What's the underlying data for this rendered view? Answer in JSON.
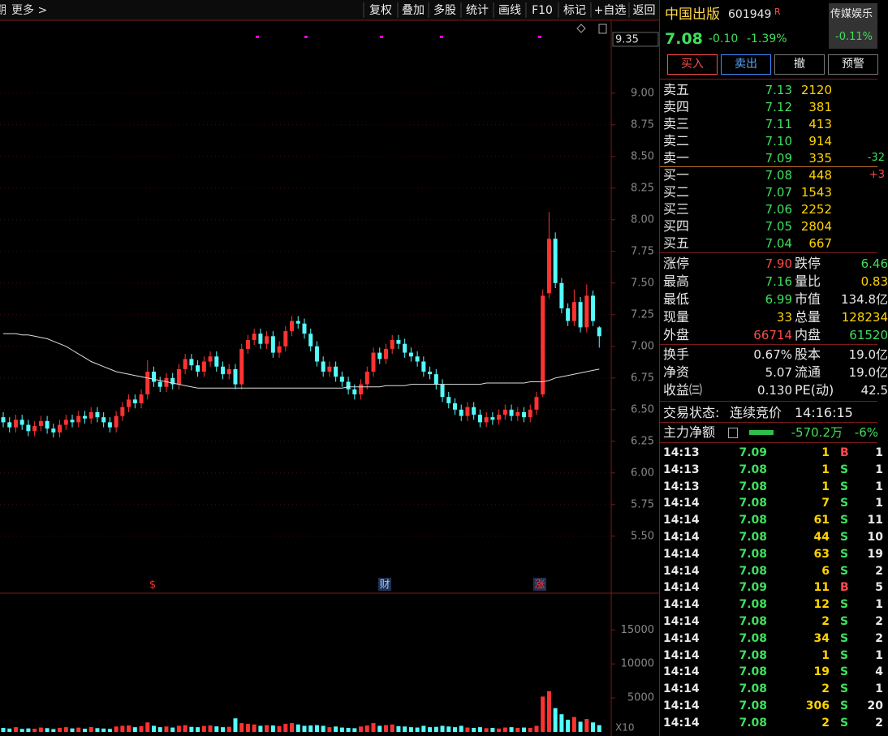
{
  "toolbar": {
    "left_cut": "期",
    "more": "更多 >",
    "buttons": [
      "复权",
      "叠加",
      "多股",
      "统计",
      "画线",
      "F10",
      "标记",
      "+自选",
      "返回"
    ]
  },
  "chart_data": [
    {
      "type": "candlestick",
      "up_color": "#ff3232",
      "down_color": "#54fcfc",
      "grid": true,
      "ylim": [
        5.05,
        9.55
      ],
      "yticks": [
        {
          "value": 5.5,
          "label": "5.50"
        },
        {
          "value": 5.75,
          "label": "5.75"
        },
        {
          "value": 6,
          "label": "6.00"
        },
        {
          "value": 6.25,
          "label": "6.25"
        },
        {
          "value": 6.5,
          "label": "6.50"
        },
        {
          "value": 6.75,
          "label": "6.75"
        },
        {
          "value": 7,
          "label": "7.00"
        },
        {
          "value": 7.25,
          "label": "7.25"
        },
        {
          "value": 7.5,
          "label": "7.50"
        },
        {
          "value": 7.75,
          "label": "7.75"
        },
        {
          "value": 8,
          "label": "8.00"
        },
        {
          "value": 8.25,
          "label": "8.25"
        },
        {
          "value": 8.5,
          "label": "8.50"
        },
        {
          "value": 8.75,
          "label": "8.75"
        },
        {
          "value": 9,
          "label": "9.00"
        }
      ],
      "cursor_price": 9.35,
      "events": [
        "$",
        "财",
        "涨"
      ],
      "open": [
        6.44,
        6.4,
        6.36,
        6.42,
        6.38,
        6.33,
        6.37,
        6.41,
        6.35,
        6.32,
        6.38,
        6.42,
        6.4,
        6.45,
        6.43,
        6.48,
        6.44,
        6.4,
        6.36,
        6.45,
        6.52,
        6.58,
        6.55,
        6.62,
        6.8,
        6.72,
        6.68,
        6.75,
        6.7,
        6.82,
        6.9,
        6.85,
        6.8,
        6.88,
        6.92,
        6.84,
        6.78,
        6.82,
        6.7,
        6.98,
        7.05,
        7.1,
        7.02,
        7.08,
        6.95,
        7.0,
        7.12,
        7.2,
        7.18,
        7.1,
        7.0,
        6.88,
        6.8,
        6.84,
        6.76,
        6.72,
        6.66,
        6.62,
        6.7,
        6.8,
        6.95,
        6.9,
        6.98,
        7.05,
        7.02,
        6.95,
        6.92,
        6.88,
        6.8,
        6.78,
        6.7,
        6.6,
        6.55,
        6.5,
        6.45,
        6.52,
        6.46,
        6.4,
        6.44,
        6.42,
        6.46,
        6.5,
        6.45,
        6.48,
        6.44,
        6.5,
        6.62,
        7.42,
        7.85,
        7.5,
        7.3,
        7.2,
        7.35,
        7.15,
        7.4,
        7.15
      ],
      "high": [
        6.48,
        6.44,
        6.46,
        6.46,
        6.42,
        6.41,
        6.45,
        6.45,
        6.39,
        6.42,
        6.46,
        6.46,
        6.49,
        6.49,
        6.52,
        6.52,
        6.48,
        6.44,
        6.49,
        6.56,
        6.62,
        6.62,
        6.66,
        6.89,
        6.84,
        6.76,
        6.79,
        6.79,
        6.86,
        6.94,
        6.94,
        6.89,
        6.92,
        6.96,
        6.96,
        6.88,
        6.86,
        6.86,
        7.02,
        7.09,
        7.14,
        7.14,
        7.12,
        7.12,
        7.04,
        7.16,
        7.24,
        7.24,
        7.22,
        7.14,
        7.04,
        6.92,
        6.88,
        6.88,
        6.8,
        6.76,
        6.7,
        6.74,
        6.84,
        6.99,
        6.99,
        7.02,
        7.09,
        7.09,
        7.06,
        6.99,
        6.96,
        6.92,
        6.84,
        6.82,
        6.74,
        6.64,
        6.59,
        6.54,
        6.56,
        6.56,
        6.5,
        6.48,
        6.48,
        6.5,
        6.54,
        6.54,
        6.52,
        6.52,
        6.54,
        6.64,
        7.45,
        8.06,
        7.9,
        7.54,
        7.34,
        7.45,
        7.39,
        7.49,
        7.44,
        7.16
      ],
      "low": [
        6.36,
        6.32,
        6.32,
        6.34,
        6.29,
        6.29,
        6.33,
        6.31,
        6.28,
        6.28,
        6.34,
        6.36,
        6.36,
        6.39,
        6.39,
        6.4,
        6.36,
        6.32,
        6.32,
        6.41,
        6.48,
        6.51,
        6.51,
        6.58,
        6.68,
        6.64,
        6.64,
        6.66,
        6.66,
        6.78,
        6.81,
        6.76,
        6.76,
        6.84,
        6.8,
        6.74,
        6.74,
        6.66,
        6.66,
        6.94,
        7.01,
        6.98,
        6.98,
        6.91,
        6.91,
        6.96,
        7.08,
        7.14,
        7.06,
        6.96,
        6.84,
        6.76,
        6.76,
        6.72,
        6.68,
        6.62,
        6.58,
        6.58,
        6.66,
        6.76,
        6.86,
        6.86,
        6.94,
        6.98,
        6.91,
        6.88,
        6.84,
        6.76,
        6.74,
        6.66,
        6.56,
        6.51,
        6.46,
        6.41,
        6.41,
        6.42,
        6.36,
        6.36,
        6.38,
        6.38,
        6.42,
        6.41,
        6.41,
        6.4,
        6.4,
        6.46,
        6.6,
        7.38,
        7.46,
        7.26,
        7.16,
        7.16,
        7.11,
        7.11,
        7.16,
        6.99
      ],
      "close": [
        6.4,
        6.36,
        6.42,
        6.38,
        6.33,
        6.37,
        6.41,
        6.35,
        6.32,
        6.38,
        6.42,
        6.4,
        6.45,
        6.43,
        6.48,
        6.44,
        6.4,
        6.36,
        6.45,
        6.52,
        6.58,
        6.55,
        6.62,
        6.8,
        6.72,
        6.68,
        6.75,
        6.7,
        6.82,
        6.9,
        6.85,
        6.8,
        6.88,
        6.92,
        6.84,
        6.78,
        6.82,
        6.7,
        6.98,
        7.05,
        7.1,
        7.02,
        7.08,
        6.95,
        7.0,
        7.12,
        7.2,
        7.18,
        7.1,
        7.0,
        6.88,
        6.8,
        6.84,
        6.76,
        6.72,
        6.66,
        6.62,
        6.7,
        6.8,
        6.95,
        6.9,
        6.98,
        7.05,
        7.02,
        6.95,
        6.92,
        6.88,
        6.8,
        6.78,
        6.7,
        6.6,
        6.55,
        6.5,
        6.45,
        6.52,
        6.46,
        6.4,
        6.44,
        6.42,
        6.46,
        6.5,
        6.45,
        6.48,
        6.44,
        6.5,
        6.6,
        7.4,
        7.85,
        7.5,
        7.3,
        7.2,
        7.35,
        7.15,
        7.4,
        7.2,
        7.08
      ],
      "ma": {
        "color": "#dddddd",
        "values": [
          7.1,
          7.1,
          7.1,
          7.09,
          7.09,
          7.08,
          7.07,
          7.06,
          7.04,
          7.02,
          7.0,
          6.97,
          6.94,
          6.91,
          6.88,
          6.86,
          6.84,
          6.82,
          6.8,
          6.79,
          6.78,
          6.77,
          6.76,
          6.75,
          6.74,
          6.73,
          6.72,
          6.71,
          6.7,
          6.69,
          6.68,
          6.67,
          6.67,
          6.67,
          6.67,
          6.67,
          6.67,
          6.67,
          6.67,
          6.67,
          6.67,
          6.67,
          6.67,
          6.67,
          6.67,
          6.67,
          6.67,
          6.67,
          6.67,
          6.67,
          6.67,
          6.67,
          6.67,
          6.67,
          6.67,
          6.68,
          6.68,
          6.68,
          6.68,
          6.68,
          6.68,
          6.69,
          6.69,
          6.69,
          6.69,
          6.7,
          6.7,
          6.7,
          6.7,
          6.7,
          6.7,
          6.7,
          6.7,
          6.7,
          6.7,
          6.7,
          6.7,
          6.71,
          6.71,
          6.71,
          6.71,
          6.71,
          6.71,
          6.71,
          6.72,
          6.72,
          6.72,
          6.73,
          6.75,
          6.76,
          6.77,
          6.78,
          6.79,
          6.8,
          6.81,
          6.82
        ]
      }
    },
    {
      "type": "bar",
      "unit_label": "X10",
      "ylim": [
        0,
        20400
      ],
      "yticks": [
        5000,
        10000,
        15000
      ],
      "values": [
        600,
        500,
        700,
        450,
        520,
        480,
        650,
        560,
        430,
        610,
        700,
        520,
        640,
        480,
        720,
        560,
        500,
        450,
        800,
        900,
        950,
        700,
        850,
        1400,
        900,
        700,
        800,
        650,
        900,
        1000,
        750,
        700,
        880,
        950,
        820,
        700,
        760,
        2000,
        1300,
        1200,
        1100,
        900,
        1000,
        950,
        850,
        1200,
        1300,
        1100,
        900,
        950,
        1000,
        900,
        700,
        800,
        650,
        600,
        550,
        800,
        950,
        1300,
        900,
        1000,
        1100,
        850,
        800,
        700,
        650,
        900,
        700,
        750,
        900,
        800,
        700,
        900,
        650,
        600,
        700,
        550,
        600,
        500,
        650,
        700,
        600,
        650,
        600,
        900,
        5200,
        6000,
        3500,
        2600,
        1800,
        2200,
        1500,
        1900,
        1400,
        1000
      ]
    }
  ],
  "quote": {
    "name": "中国出版",
    "code": "601949",
    "badge": "R",
    "sector": {
      "name": "传媒娱乐",
      "change": "-0.11%"
    },
    "price": "7.08",
    "change": "-0.10",
    "change_pct": "-1.39%",
    "buttons": [
      "买入",
      "卖出",
      "撤",
      "预警"
    ],
    "asks": [
      {
        "label": "卖五",
        "price": "7.13",
        "volume": "2120"
      },
      {
        "label": "卖四",
        "price": "7.12",
        "volume": "381"
      },
      {
        "label": "卖三",
        "price": "7.11",
        "volume": "413"
      },
      {
        "label": "卖二",
        "price": "7.10",
        "volume": "914"
      },
      {
        "label": "卖一",
        "price": "7.09",
        "volume": "335",
        "delta": "-32"
      }
    ],
    "bids": [
      {
        "label": "买一",
        "price": "7.08",
        "volume": "448",
        "delta": "+3"
      },
      {
        "label": "买二",
        "price": "7.07",
        "volume": "1543"
      },
      {
        "label": "买三",
        "price": "7.06",
        "volume": "2252"
      },
      {
        "label": "买四",
        "price": "7.05",
        "volume": "2804"
      },
      {
        "label": "买五",
        "price": "7.04",
        "volume": "667"
      }
    ],
    "stats": [
      [
        "涨停",
        "7.90",
        "跌停",
        "6.46"
      ],
      [
        "最高",
        "7.16",
        "量比",
        "0.83"
      ],
      [
        "最低",
        "6.99",
        "市值",
        "134.8亿"
      ],
      [
        "现量",
        "33",
        "总量",
        "128234"
      ],
      [
        "外盘",
        "66714",
        "内盘",
        "61520"
      ]
    ],
    "stats2": [
      [
        "换手",
        "0.67%",
        "股本",
        "19.0亿"
      ],
      [
        "净资",
        "5.07",
        "流通",
        "19.0亿"
      ],
      [
        "收益㈢",
        "0.130",
        "PE(动)",
        "42.5"
      ]
    ],
    "trade_state": {
      "label": "交易状态:",
      "value": "连续竞价",
      "time": "14:16:15"
    },
    "main_flow": {
      "label": "主力净额",
      "value": "-570.2万",
      "pct": "-6%"
    },
    "ticks": [
      [
        "14:13",
        "7.09",
        "1",
        "B",
        "1"
      ],
      [
        "14:13",
        "7.08",
        "1",
        "S",
        "1"
      ],
      [
        "14:13",
        "7.08",
        "1",
        "S",
        "1"
      ],
      [
        "14:14",
        "7.08",
        "7",
        "S",
        "1"
      ],
      [
        "14:14",
        "7.08",
        "61",
        "S",
        "11"
      ],
      [
        "14:14",
        "7.08",
        "44",
        "S",
        "10"
      ],
      [
        "14:14",
        "7.08",
        "63",
        "S",
        "19"
      ],
      [
        "14:14",
        "7.08",
        "6",
        "S",
        "2"
      ],
      [
        "14:14",
        "7.09",
        "11",
        "B",
        "5"
      ],
      [
        "14:14",
        "7.08",
        "12",
        "S",
        "1"
      ],
      [
        "14:14",
        "7.08",
        "2",
        "S",
        "2"
      ],
      [
        "14:14",
        "7.08",
        "34",
        "S",
        "2"
      ],
      [
        "14:14",
        "7.08",
        "1",
        "S",
        "1"
      ],
      [
        "14:14",
        "7.08",
        "19",
        "S",
        "4"
      ],
      [
        "14:14",
        "7.08",
        "2",
        "S",
        "1"
      ],
      [
        "14:14",
        "7.08",
        "306",
        "S",
        "20"
      ],
      [
        "14:14",
        "7.08",
        "2",
        "S",
        "2"
      ]
    ]
  }
}
